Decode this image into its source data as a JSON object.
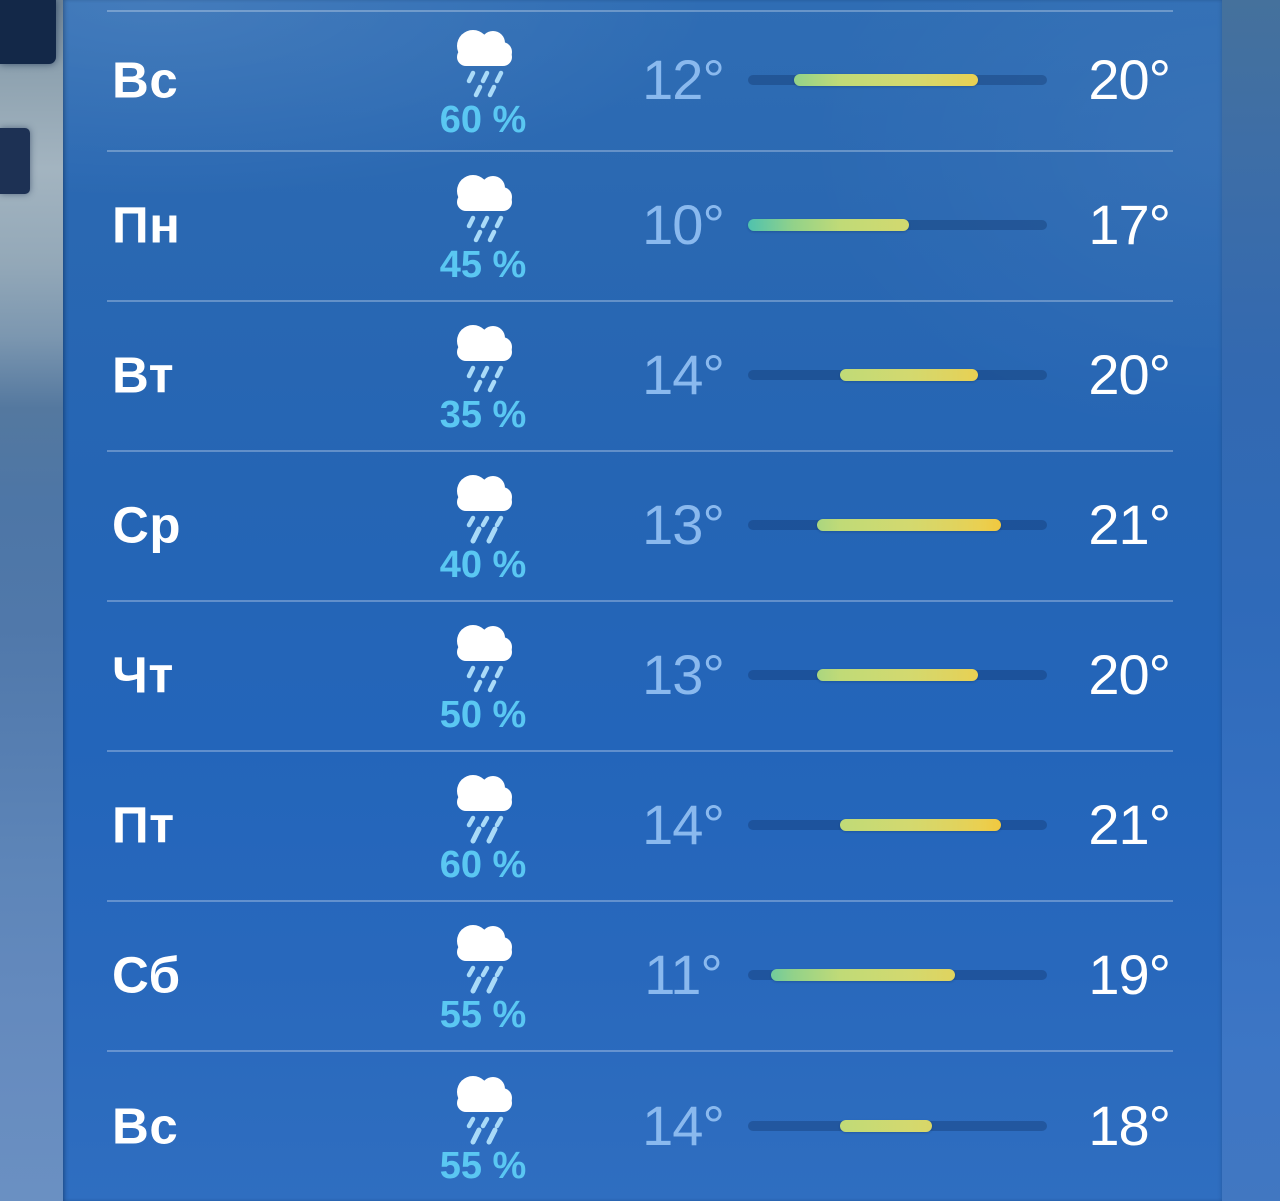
{
  "colors": {
    "day_label": "#ffffff",
    "high_temp": "#ffffff",
    "low_temp": "#8ab9ee",
    "precip_chance": "#5ac7f2",
    "separator": "rgba(255,255,255,0.28)",
    "bar_track": "rgba(12,44,92,0.32)",
    "cloud": "#ffffff",
    "rain_drops": "#a9daf8"
  },
  "chart_data": {
    "type": "table",
    "description": "Weekly weather forecast list: day, chance of precipitation, low temperature, temperature range bar, high temperature",
    "columns": [
      "day",
      "precipitation_chance",
      "low_temp",
      "temp_range_bar",
      "high_temp"
    ],
    "temp_scale": {
      "min": 10,
      "max": 23
    },
    "bar_gradient": {
      "temps": [
        10,
        12,
        14,
        17,
        19,
        20,
        21,
        23
      ],
      "colors": [
        "#4fc2ae",
        "#93d289",
        "#c0da77",
        "#d3d96f",
        "#e0d35e",
        "#e9d052",
        "#f1c83f",
        "#f5bb2b"
      ]
    },
    "rows": [
      {
        "day": "Вс",
        "icon": "cloud-drizzle",
        "precip": "60 %",
        "low": 12,
        "high": 20,
        "low_label": "12°",
        "high_label": "20°"
      },
      {
        "day": "Пн",
        "icon": "cloud-drizzle",
        "precip": "45 %",
        "low": 10,
        "high": 17,
        "low_label": "10°",
        "high_label": "17°"
      },
      {
        "day": "Вт",
        "icon": "cloud-drizzle",
        "precip": "35 %",
        "low": 14,
        "high": 20,
        "low_label": "14°",
        "high_label": "20°"
      },
      {
        "day": "Ср",
        "icon": "cloud-rain",
        "precip": "40 %",
        "low": 13,
        "high": 21,
        "low_label": "13°",
        "high_label": "21°"
      },
      {
        "day": "Чт",
        "icon": "cloud-drizzle",
        "precip": "50 %",
        "low": 13,
        "high": 20,
        "low_label": "13°",
        "high_label": "20°"
      },
      {
        "day": "Пт",
        "icon": "cloud-rain",
        "precip": "60 %",
        "low": 14,
        "high": 21,
        "low_label": "14°",
        "high_label": "21°"
      },
      {
        "day": "Сб",
        "icon": "cloud-rain",
        "precip": "55 %",
        "low": 11,
        "high": 19,
        "low_label": "11°",
        "high_label": "19°"
      },
      {
        "day": "Вс",
        "icon": "cloud-rain",
        "precip": "55 %",
        "low": 14,
        "high": 18,
        "low_label": "14°",
        "high_label": "18°"
      }
    ]
  }
}
